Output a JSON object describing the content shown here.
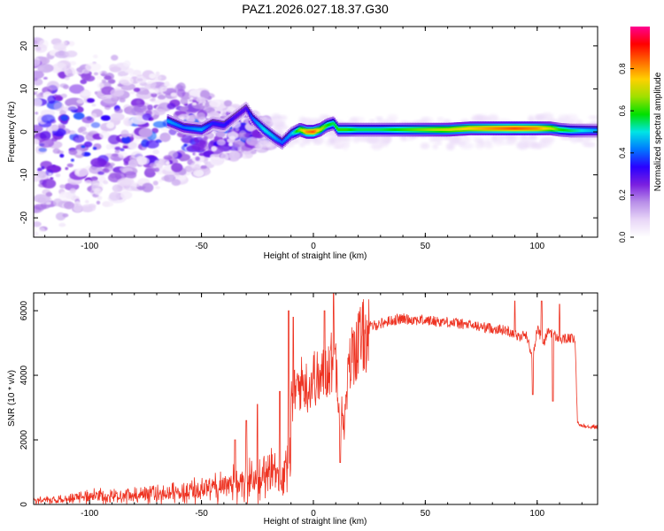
{
  "figure_title": "PAZ1.2026.027.18.37.G30",
  "chart_data": [
    {
      "type": "heatmap",
      "title": "PAZ1.2026.027.18.37.G30",
      "xlabel": "Height of straight line (km)",
      "ylabel": "Frequency (Hz)",
      "xlim": [
        -125,
        127
      ],
      "ylim": [
        -24.5,
        24.5
      ],
      "x_ticks": [
        -100,
        -50,
        0,
        50,
        100
      ],
      "x_tick_labels": [
        "-100",
        "-50",
        "0",
        "50",
        "100"
      ],
      "y_ticks": [
        -20,
        -10,
        0,
        10,
        20
      ],
      "y_tick_labels": [
        "-20",
        "-10",
        "0",
        "10",
        "20"
      ],
      "colorbar": {
        "label": "Normalized spectral amplitude",
        "range": [
          0,
          1
        ],
        "ticks": [
          0.0,
          0.2,
          0.4,
          0.6,
          0.8
        ],
        "tick_labels": [
          "0.0",
          "0.2",
          "0.4",
          "0.6",
          "0.8"
        ],
        "colormap": [
          "#ffffff",
          "#e8d6f7",
          "#b88ee8",
          "#7a1fe0",
          "#2a00ff",
          "#0078ff",
          "#00e5e5",
          "#00e000",
          "#a0e000",
          "#ffd000",
          "#ff6a00",
          "#ff0000",
          "#ff0090"
        ]
      },
      "ridge": [
        {
          "x": -65,
          "freq": 2.5,
          "amp": 0.45
        },
        {
          "x": -58,
          "freq": 1.0,
          "amp": 0.4
        },
        {
          "x": -50,
          "freq": 0.5,
          "amp": 0.45
        },
        {
          "x": -45,
          "freq": 2.0,
          "amp": 0.35
        },
        {
          "x": -40,
          "freq": 1.5,
          "amp": 0.35
        },
        {
          "x": -35,
          "freq": 3.5,
          "amp": 0.3
        },
        {
          "x": -30,
          "freq": 5.5,
          "amp": 0.3
        },
        {
          "x": -27,
          "freq": 3.0,
          "amp": 0.4
        },
        {
          "x": -22,
          "freq": 0.5,
          "amp": 0.5
        },
        {
          "x": -17,
          "freq": -1.5,
          "amp": 0.45
        },
        {
          "x": -14,
          "freq": -2.5,
          "amp": 0.4
        },
        {
          "x": -10,
          "freq": -0.5,
          "amp": 0.45
        },
        {
          "x": -6,
          "freq": 0.5,
          "amp": 0.65
        },
        {
          "x": -3,
          "freq": 0.0,
          "amp": 0.8
        },
        {
          "x": 0,
          "freq": 0.0,
          "amp": 0.85
        },
        {
          "x": 3,
          "freq": 0.5,
          "amp": 0.7
        },
        {
          "x": 6,
          "freq": 1.5,
          "amp": 0.6
        },
        {
          "x": 9,
          "freq": 2.0,
          "amp": 0.55
        },
        {
          "x": 11,
          "freq": 0.5,
          "amp": 0.6
        },
        {
          "x": 15,
          "freq": 0.5,
          "amp": 0.6
        },
        {
          "x": 20,
          "freq": 0.5,
          "amp": 0.55
        },
        {
          "x": 30,
          "freq": 0.5,
          "amp": 0.55
        },
        {
          "x": 40,
          "freq": 0.5,
          "amp": 0.6
        },
        {
          "x": 50,
          "freq": 0.5,
          "amp": 0.65
        },
        {
          "x": 60,
          "freq": 0.5,
          "amp": 0.7
        },
        {
          "x": 70,
          "freq": 0.8,
          "amp": 0.75
        },
        {
          "x": 80,
          "freq": 0.8,
          "amp": 0.8
        },
        {
          "x": 90,
          "freq": 0.8,
          "amp": 0.85
        },
        {
          "x": 100,
          "freq": 0.8,
          "amp": 0.8
        },
        {
          "x": 106,
          "freq": 0.8,
          "amp": 0.7
        },
        {
          "x": 110,
          "freq": 0.5,
          "amp": 0.6
        },
        {
          "x": 115,
          "freq": 0.3,
          "amp": 0.55
        },
        {
          "x": 120,
          "freq": 0.3,
          "amp": 0.5
        },
        {
          "x": 127,
          "freq": 0.3,
          "amp": 0.45
        }
      ]
    },
    {
      "type": "line",
      "xlabel": "Height of straight line (km)",
      "ylabel": "SNR (10 * v/v)",
      "xlim": [
        -125,
        127
      ],
      "ylim": [
        0,
        6550
      ],
      "x_ticks": [
        -100,
        -50,
        0,
        50,
        100
      ],
      "x_tick_labels": [
        "-100",
        "-50",
        "0",
        "50",
        "100"
      ],
      "y_ticks": [
        0,
        2000,
        4000,
        6000
      ],
      "y_tick_labels": [
        "0",
        "2000",
        "4000",
        "6000"
      ],
      "series": [
        {
          "name": "SNR",
          "color": "#ee3322",
          "x": [
            -125,
            -110,
            -100,
            -90,
            -80,
            -70,
            -60,
            -50,
            -45,
            -40,
            -35,
            -30,
            -25,
            -20,
            -15,
            -12,
            -10,
            -8,
            -5,
            -2,
            0,
            3,
            6,
            8,
            10,
            12,
            14,
            16,
            18,
            20,
            22,
            25,
            30,
            35,
            40,
            50,
            60,
            70,
            80,
            85,
            90,
            92,
            95,
            98,
            100,
            103,
            105,
            110,
            115,
            117,
            118,
            120,
            127
          ],
          "values": [
            200,
            250,
            400,
            450,
            450,
            550,
            650,
            800,
            900,
            1000,
            1100,
            1200,
            1300,
            1500,
            1600,
            1800,
            3200,
            3600,
            3900,
            3700,
            4100,
            3900,
            4300,
            4500,
            4700,
            3000,
            2600,
            4400,
            4900,
            5100,
            5300,
            5500,
            5600,
            5700,
            5750,
            5700,
            5650,
            5550,
            5450,
            5400,
            5300,
            5150,
            5300,
            4500,
            5450,
            5000,
            5400,
            5100,
            5150,
            5050,
            2500,
            2450,
            2400
          ],
          "spikes": [
            {
              "x": -35,
              "value": 2000
            },
            {
              "x": -30,
              "value": 2600
            },
            {
              "x": -25,
              "value": 3100
            },
            {
              "x": -15,
              "value": 3500
            },
            {
              "x": -11,
              "value": 6000
            },
            {
              "x": -9,
              "value": 5800
            },
            {
              "x": 5,
              "value": 6000
            },
            {
              "x": 9,
              "value": 6550
            },
            {
              "x": 12,
              "value": 1300
            },
            {
              "x": 90,
              "value": 6300
            },
            {
              "x": 98,
              "value": 3400
            },
            {
              "x": 102,
              "value": 6300
            },
            {
              "x": 107,
              "value": 3200
            },
            {
              "x": 110,
              "value": 6200
            }
          ]
        }
      ]
    }
  ]
}
